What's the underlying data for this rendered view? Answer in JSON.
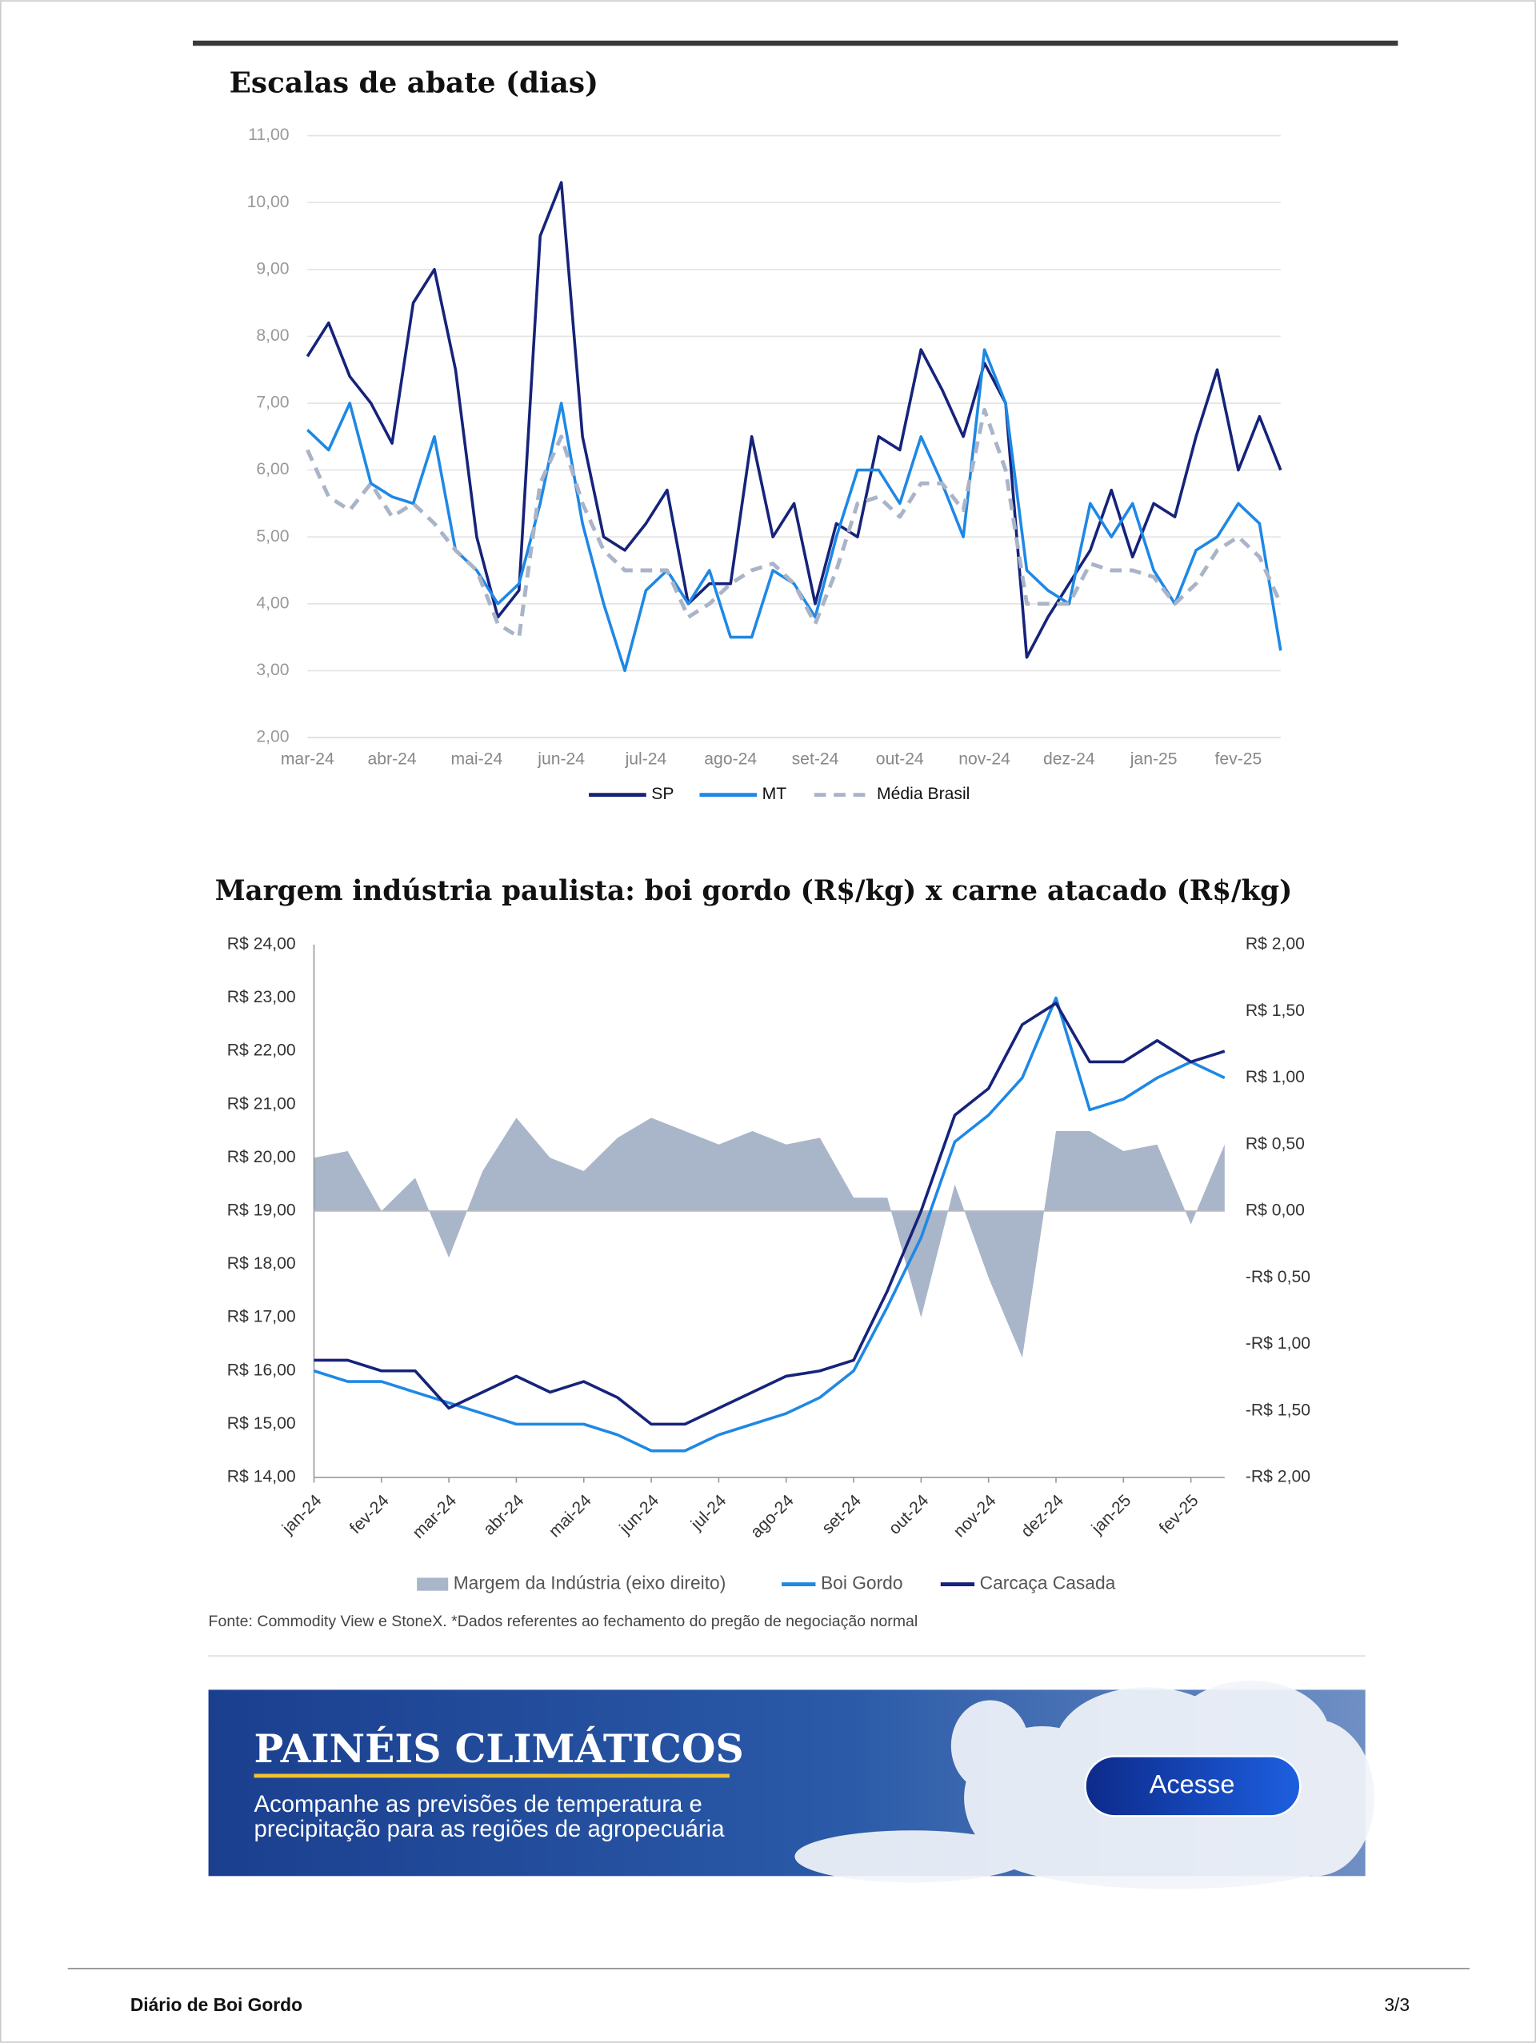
{
  "chart_data": [
    {
      "type": "line",
      "title": "Escalas de abate (dias)",
      "x": [
        0,
        0.25,
        0.5,
        0.75,
        1,
        1.25,
        1.5,
        1.75,
        2,
        2.25,
        2.5,
        2.75,
        3,
        3.25,
        3.5,
        3.75,
        4,
        4.25,
        4.5,
        4.75,
        5,
        5.25,
        5.5,
        5.75,
        6,
        6.25,
        6.5,
        6.75,
        7,
        7.25,
        7.5,
        7.75,
        8,
        8.25,
        8.5,
        8.75,
        9,
        9.25,
        9.5,
        9.75,
        10,
        10.25,
        10.5,
        10.75,
        11,
        11.25,
        11.5
      ],
      "xlim": [
        0,
        11.5
      ],
      "xticks": [
        {
          "value": 0,
          "label": "mar-24"
        },
        {
          "value": 1,
          "label": "abr-24"
        },
        {
          "value": 2,
          "label": "mai-24"
        },
        {
          "value": 3,
          "label": "jun-24"
        },
        {
          "value": 4,
          "label": "jul-24"
        },
        {
          "value": 5,
          "label": "ago-24"
        },
        {
          "value": 6,
          "label": "set-24"
        },
        {
          "value": 7,
          "label": "out-24"
        },
        {
          "value": 8,
          "label": "nov-24"
        },
        {
          "value": 9,
          "label": "dez-24"
        },
        {
          "value": 10,
          "label": "jan-25"
        },
        {
          "value": 11,
          "label": "fev-25"
        }
      ],
      "ylim": [
        2,
        11
      ],
      "yticks": [
        {
          "value": 2,
          "label": "2,00"
        },
        {
          "value": 3,
          "label": "3,00"
        },
        {
          "value": 4,
          "label": "4,00"
        },
        {
          "value": 5,
          "label": "5,00"
        },
        {
          "value": 6,
          "label": "6,00"
        },
        {
          "value": 7,
          "label": "7,00"
        },
        {
          "value": 8,
          "label": "8,00"
        },
        {
          "value": 9,
          "label": "9,00"
        },
        {
          "value": 10,
          "label": "10,00"
        },
        {
          "value": 11,
          "label": "11,00"
        }
      ],
      "grid": true,
      "series": [
        {
          "name": "SP",
          "color": "#16237a",
          "values": [
            7.7,
            8.2,
            7.4,
            7.0,
            6.4,
            8.5,
            9.0,
            7.5,
            5.0,
            3.8,
            4.2,
            9.5,
            10.3,
            6.5,
            5.0,
            4.8,
            5.2,
            5.7,
            4.0,
            4.3,
            4.3,
            6.5,
            5.0,
            5.5,
            4.0,
            5.2,
            5.0,
            6.5,
            6.3,
            7.8,
            7.2,
            6.5,
            7.6,
            7.0,
            3.2,
            3.8,
            4.3,
            4.8,
            5.7,
            4.7,
            5.5,
            5.3,
            6.5,
            7.5,
            6.0,
            6.8,
            6.0
          ]
        },
        {
          "name": "MT",
          "color": "#1e88e5",
          "values": [
            6.6,
            6.3,
            7.0,
            5.8,
            5.6,
            5.5,
            6.5,
            4.8,
            4.5,
            4.0,
            4.3,
            5.5,
            7.0,
            5.2,
            4.0,
            3.0,
            4.2,
            4.5,
            4.0,
            4.5,
            3.5,
            3.5,
            4.5,
            4.3,
            3.8,
            5.0,
            6.0,
            6.0,
            5.5,
            6.5,
            5.8,
            5.0,
            7.8,
            7.0,
            4.5,
            4.2,
            4.0,
            5.5,
            5.0,
            5.5,
            4.5,
            4.0,
            4.8,
            5.0,
            5.5,
            5.2,
            3.3
          ]
        },
        {
          "name": "Média Brasil",
          "color": "#aab4c8",
          "dashed": true,
          "values": [
            6.3,
            5.6,
            5.4,
            5.8,
            5.3,
            5.5,
            5.2,
            4.8,
            4.5,
            3.7,
            3.5,
            5.8,
            6.5,
            5.5,
            4.8,
            4.5,
            4.5,
            4.5,
            3.8,
            4.0,
            4.3,
            4.5,
            4.6,
            4.3,
            3.7,
            4.5,
            5.5,
            5.6,
            5.3,
            5.8,
            5.8,
            5.4,
            6.9,
            6.0,
            4.0,
            4.0,
            4.0,
            4.6,
            4.5,
            4.5,
            4.4,
            4.0,
            4.3,
            4.8,
            5.0,
            4.7,
            4.0
          ]
        }
      ]
    },
    {
      "type": "line",
      "title": "Margem indústria paulista: boi gordo (R$/kg) x carne atacado (R$/kg)",
      "x": [
        0,
        0.5,
        1,
        1.5,
        2,
        2.5,
        3,
        3.5,
        4,
        4.5,
        5,
        5.5,
        6,
        6.5,
        7,
        7.5,
        8,
        8.5,
        9,
        9.5,
        10,
        10.5,
        11,
        11.5,
        12,
        12.5,
        13,
        13.5
      ],
      "xlim": [
        0,
        13.5
      ],
      "xticks": [
        {
          "value": 0,
          "label": "jan-24"
        },
        {
          "value": 1,
          "label": "fev-24"
        },
        {
          "value": 2,
          "label": "mar-24"
        },
        {
          "value": 3,
          "label": "abr-24"
        },
        {
          "value": 4,
          "label": "mai-24"
        },
        {
          "value": 5,
          "label": "jun-24"
        },
        {
          "value": 6,
          "label": "jul-24"
        },
        {
          "value": 7,
          "label": "ago-24"
        },
        {
          "value": 8,
          "label": "set-24"
        },
        {
          "value": 9,
          "label": "out-24"
        },
        {
          "value": 10,
          "label": "nov-24"
        },
        {
          "value": 11,
          "label": "dez-24"
        },
        {
          "value": 12,
          "label": "jan-25"
        },
        {
          "value": 13,
          "label": "fev-25"
        }
      ],
      "ylim": [
        14,
        24
      ],
      "yticks": [
        {
          "value": 14,
          "label": "R$ 14,00"
        },
        {
          "value": 15,
          "label": "R$ 15,00"
        },
        {
          "value": 16,
          "label": "R$ 16,00"
        },
        {
          "value": 17,
          "label": "R$ 17,00"
        },
        {
          "value": 18,
          "label": "R$ 18,00"
        },
        {
          "value": 19,
          "label": "R$ 19,00"
        },
        {
          "value": 20,
          "label": "R$ 20,00"
        },
        {
          "value": 21,
          "label": "R$ 21,00"
        },
        {
          "value": 22,
          "label": "R$ 22,00"
        },
        {
          "value": 23,
          "label": "R$ 23,00"
        },
        {
          "value": 24,
          "label": "R$ 24,00"
        }
      ],
      "y2lim": [
        -2,
        2
      ],
      "y2ticks": [
        {
          "value": -2,
          "label": "-R$ 2,00"
        },
        {
          "value": -1.5,
          "label": "-R$ 1,50"
        },
        {
          "value": -1,
          "label": "-R$ 1,00"
        },
        {
          "value": -0.5,
          "label": "-R$ 0,50"
        },
        {
          "value": 0,
          "label": "R$ 0,00"
        },
        {
          "value": 0.5,
          "label": "R$ 0,50"
        },
        {
          "value": 1,
          "label": "R$ 1,00"
        },
        {
          "value": 1.5,
          "label": "R$ 1,50"
        },
        {
          "value": 2,
          "label": "R$ 2,00"
        }
      ],
      "grid": false,
      "series": [
        {
          "name": "Margem da Indústria (eixo direito)",
          "color": "#a9b5c9",
          "axis": "y2",
          "area": true,
          "values": [
            0.4,
            0.45,
            0.0,
            0.25,
            -0.35,
            0.3,
            0.7,
            0.4,
            0.3,
            0.55,
            0.7,
            0.6,
            0.5,
            0.6,
            0.5,
            0.55,
            0.1,
            0.1,
            -0.8,
            0.2,
            -0.5,
            -1.1,
            0.6,
            0.6,
            0.45,
            0.5,
            -0.1,
            0.5
          ]
        },
        {
          "name": "Boi Gordo",
          "color": "#1e88e5",
          "values": [
            16.0,
            15.8,
            15.8,
            15.6,
            15.4,
            15.2,
            15.0,
            15.0,
            15.0,
            14.8,
            14.5,
            14.5,
            14.8,
            15.0,
            15.2,
            15.5,
            16.0,
            17.2,
            18.5,
            20.3,
            20.8,
            21.5,
            23.0,
            20.9,
            21.1,
            21.5,
            21.8,
            21.5
          ]
        },
        {
          "name": "Carcaça Casada",
          "color": "#16237a",
          "values": [
            16.2,
            16.2,
            16.0,
            16.0,
            15.3,
            15.6,
            15.9,
            15.6,
            15.8,
            15.5,
            15.0,
            15.0,
            15.3,
            15.6,
            15.9,
            16.0,
            16.2,
            17.5,
            19.0,
            20.8,
            21.3,
            22.5,
            22.9,
            21.8,
            21.8,
            22.2,
            21.8,
            22.0
          ]
        }
      ]
    }
  ],
  "source": "Fonte: Commodity View e StoneX. *Dados referentes ao fechamento do pregão de negociação normal",
  "banner": {
    "title": "PAINÉIS CLIMÁTICOS",
    "lines": [
      "Acompanhe as previsões de temperatura e",
      "precipitação para as regiões de agropecuária"
    ],
    "button": "Acesse"
  },
  "footer": {
    "title": "Diário de Boi Gordo",
    "page": "3/3"
  }
}
